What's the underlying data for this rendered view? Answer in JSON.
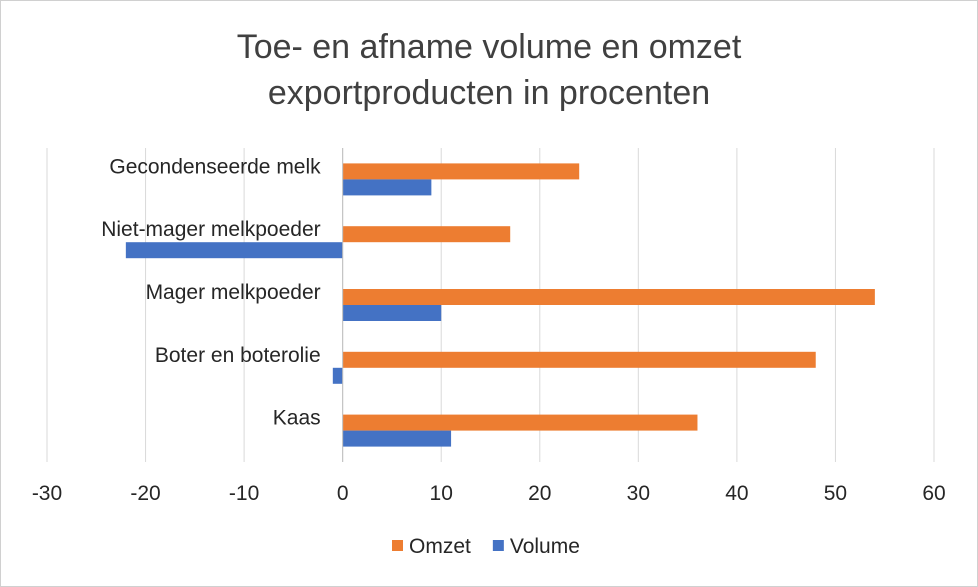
{
  "chart_data": {
    "type": "bar",
    "orientation": "horizontal",
    "title": [
      "Toe- en afname volume en omzet",
      "exportproducten in procenten"
    ],
    "categories": [
      "Gecondenseerde melk",
      "Niet-mager melkpoeder",
      "Mager melkpoeder",
      "Boter en boterolie",
      "Kaas"
    ],
    "series": [
      {
        "name": "Omzet",
        "color": "#ED7D31",
        "values": [
          24,
          17,
          54,
          48,
          36
        ]
      },
      {
        "name": "Volume",
        "color": "#4472C4",
        "values": [
          9,
          -22,
          10,
          -1,
          11
        ]
      }
    ],
    "xlim": [
      -30,
      60
    ],
    "xticks": [
      -30,
      -20,
      -10,
      0,
      10,
      20,
      30,
      40,
      50,
      60
    ],
    "grid": true,
    "legend_position": "bottom"
  }
}
